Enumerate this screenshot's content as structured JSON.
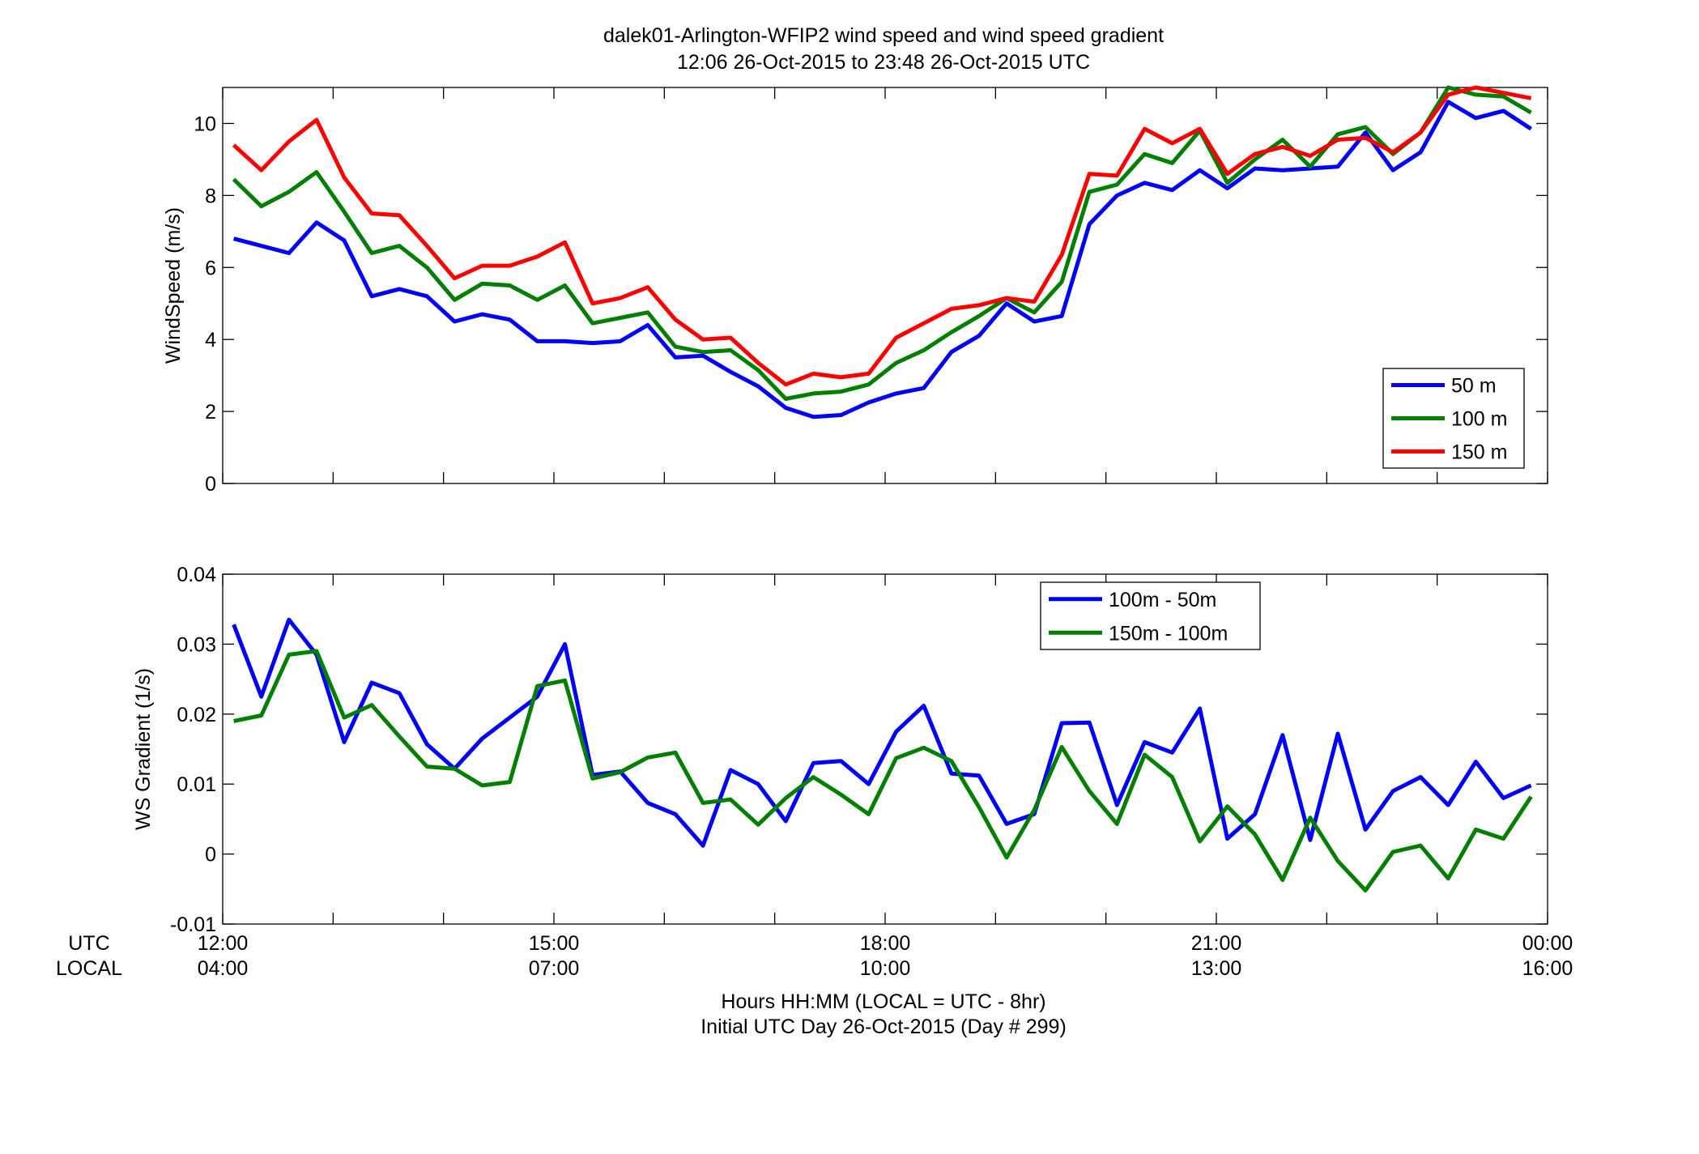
{
  "figure": {
    "title_line1": "dalek01-Arlington-WFIP2  wind speed and wind speed gradient",
    "title_line2": "12:06 26-Oct-2015 to 23:48 26-Oct-2015  UTC",
    "utc_row_label": "UTC",
    "local_row_label": "LOCAL",
    "xlabel_line1": "Hours HH:MM  (LOCAL = UTC - 8hr)",
    "xlabel_line2": "Initial UTC Day 26-Oct-2015 (Day # 299)",
    "x_tick_hours": [
      12,
      15,
      18,
      21,
      24
    ],
    "x_tick_utc": [
      "12:00",
      "15:00",
      "18:00",
      "21:00",
      "00:00"
    ],
    "x_tick_local": [
      "04:00",
      "07:00",
      "10:00",
      "13:00",
      "16:00"
    ],
    "xlim_hours": [
      12,
      24
    ]
  },
  "chart_data": [
    {
      "type": "line",
      "title": "",
      "ylabel": "WindSpeed (m/s)",
      "ylim": [
        0,
        11
      ],
      "yticks": [
        0,
        2,
        4,
        6,
        8,
        10
      ],
      "ytick_labels": [
        "0",
        "2",
        "4",
        "6",
        "8",
        "10"
      ],
      "grid": false,
      "legend": "bottom-right",
      "x": [
        12.1,
        12.35,
        12.6,
        12.85,
        13.1,
        13.35,
        13.6,
        13.85,
        14.1,
        14.35,
        14.6,
        14.85,
        15.1,
        15.35,
        15.6,
        15.85,
        16.1,
        16.35,
        16.6,
        16.85,
        17.1,
        17.35,
        17.6,
        17.85,
        18.1,
        18.35,
        18.6,
        18.85,
        19.1,
        19.35,
        19.6,
        19.85,
        20.1,
        20.35,
        20.6,
        20.85,
        21.1,
        21.35,
        21.6,
        21.85,
        22.1,
        22.35,
        22.6,
        22.85,
        23.1,
        23.35,
        23.6,
        23.85
      ],
      "series": [
        {
          "name": "50 m",
          "color": "#0000ff",
          "values": [
            6.8,
            6.6,
            6.4,
            7.25,
            6.75,
            5.2,
            5.4,
            5.2,
            4.5,
            4.7,
            4.55,
            3.95,
            3.95,
            3.9,
            3.95,
            4.4,
            3.5,
            3.55,
            3.1,
            2.7,
            2.1,
            1.85,
            1.9,
            2.25,
            2.5,
            2.65,
            3.65,
            4.1,
            5.0,
            4.5,
            4.65,
            7.2,
            8.0,
            8.35,
            8.15,
            8.7,
            8.2,
            8.75,
            8.7,
            8.75,
            8.8,
            9.75,
            8.7,
            9.2,
            10.6,
            10.15,
            10.35,
            9.85
          ]
        },
        {
          "name": "100 m",
          "color": "#007f00",
          "values": [
            8.45,
            7.7,
            8.1,
            8.65,
            7.55,
            6.4,
            6.6,
            6.0,
            5.1,
            5.55,
            5.5,
            5.1,
            5.5,
            4.45,
            4.6,
            4.75,
            3.8,
            3.65,
            3.7,
            3.15,
            2.35,
            2.5,
            2.55,
            2.75,
            3.35,
            3.7,
            4.2,
            4.65,
            5.15,
            4.75,
            5.6,
            8.1,
            8.3,
            9.15,
            8.9,
            9.8,
            8.35,
            9.0,
            9.55,
            8.8,
            9.7,
            9.9,
            9.15,
            9.75,
            11.0,
            10.8,
            10.75,
            10.3
          ]
        },
        {
          "name": "150 m",
          "color": "#ff0000",
          "values": [
            9.4,
            8.7,
            9.5,
            10.1,
            8.5,
            7.5,
            7.45,
            6.6,
            5.7,
            6.05,
            6.05,
            6.3,
            6.7,
            5.0,
            5.15,
            5.45,
            4.55,
            4.0,
            4.05,
            3.35,
            2.75,
            3.05,
            2.95,
            3.05,
            4.05,
            4.45,
            4.85,
            4.95,
            5.15,
            5.05,
            6.35,
            8.6,
            8.55,
            9.85,
            9.45,
            9.85,
            8.6,
            9.15,
            9.35,
            9.1,
            9.55,
            9.6,
            9.2,
            9.75,
            10.8,
            11.0,
            10.85,
            10.7
          ]
        }
      ]
    },
    {
      "type": "line",
      "title": "",
      "ylabel": "WS Gradient (1/s)",
      "ylim": [
        -0.01,
        0.04
      ],
      "yticks": [
        -0.01,
        0,
        0.01,
        0.02,
        0.03,
        0.04
      ],
      "ytick_labels": [
        "-0.01",
        "0",
        "0.01",
        "0.02",
        "0.03",
        "0.04"
      ],
      "grid": false,
      "legend": "top-center",
      "x": [
        12.1,
        12.35,
        12.6,
        12.85,
        13.1,
        13.35,
        13.6,
        13.85,
        14.1,
        14.35,
        14.6,
        14.85,
        15.1,
        15.35,
        15.6,
        15.85,
        16.1,
        16.35,
        16.6,
        16.85,
        17.1,
        17.35,
        17.6,
        17.85,
        18.1,
        18.35,
        18.6,
        18.85,
        19.1,
        19.35,
        19.6,
        19.85,
        20.1,
        20.35,
        20.6,
        20.85,
        21.1,
        21.35,
        21.6,
        21.85,
        22.1,
        22.35,
        22.6,
        22.85,
        23.1,
        23.35,
        23.6,
        23.85
      ],
      "series": [
        {
          "name": "100m - 50m",
          "color": "#0000ff",
          "values": [
            0.0328,
            0.0225,
            0.0335,
            0.0285,
            0.016,
            0.0245,
            0.023,
            0.0157,
            0.0122,
            0.0165,
            0.0195,
            0.0225,
            0.03,
            0.0113,
            0.0118,
            0.0073,
            0.0057,
            0.0012,
            0.012,
            0.01,
            0.0047,
            0.013,
            0.0133,
            0.01,
            0.0175,
            0.0212,
            0.0115,
            0.0112,
            0.0043,
            0.0057,
            0.0187,
            0.0188,
            0.007,
            0.016,
            0.0145,
            0.0208,
            0.0022,
            0.0057,
            0.017,
            0.002,
            0.0172,
            0.0035,
            0.009,
            0.011,
            0.007,
            0.0132,
            0.008,
            0.0098
          ]
        },
        {
          "name": "150m - 100m",
          "color": "#007f00",
          "values": [
            0.019,
            0.0198,
            0.0285,
            0.029,
            0.0195,
            0.0213,
            0.0168,
            0.0125,
            0.0122,
            0.0098,
            0.0103,
            0.024,
            0.0248,
            0.0108,
            0.0117,
            0.0138,
            0.0145,
            0.0073,
            0.0078,
            0.0042,
            0.008,
            0.011,
            0.0085,
            0.0057,
            0.0137,
            0.0152,
            0.0133,
            0.0067,
            -0.0005,
            0.0063,
            0.0153,
            0.009,
            0.0043,
            0.0142,
            0.011,
            0.0018,
            0.0068,
            0.0028,
            -0.0037,
            0.0052,
            -0.001,
            -0.0052,
            0.0003,
            0.0012,
            -0.0035,
            0.0035,
            0.0022,
            0.0082
          ]
        }
      ]
    }
  ]
}
